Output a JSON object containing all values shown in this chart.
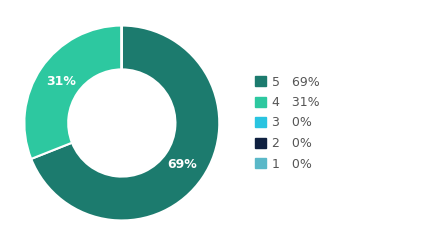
{
  "labels": [
    "5",
    "4",
    "3",
    "2",
    "1"
  ],
  "values": [
    69,
    31,
    0,
    0,
    0
  ],
  "colors": [
    "#1c7b6e",
    "#2dc8a0",
    "#29c4e0",
    "#0f2040",
    "#5ab8c8"
  ],
  "legend_labels": [
    "5   69%",
    "4   31%",
    "3   0%",
    "2   0%",
    "1   0%"
  ],
  "background_color": "#ffffff",
  "donut_width": 0.45,
  "start_angle": 90,
  "text_color": "#555555",
  "label_fontsize": 9,
  "legend_fontsize": 9
}
